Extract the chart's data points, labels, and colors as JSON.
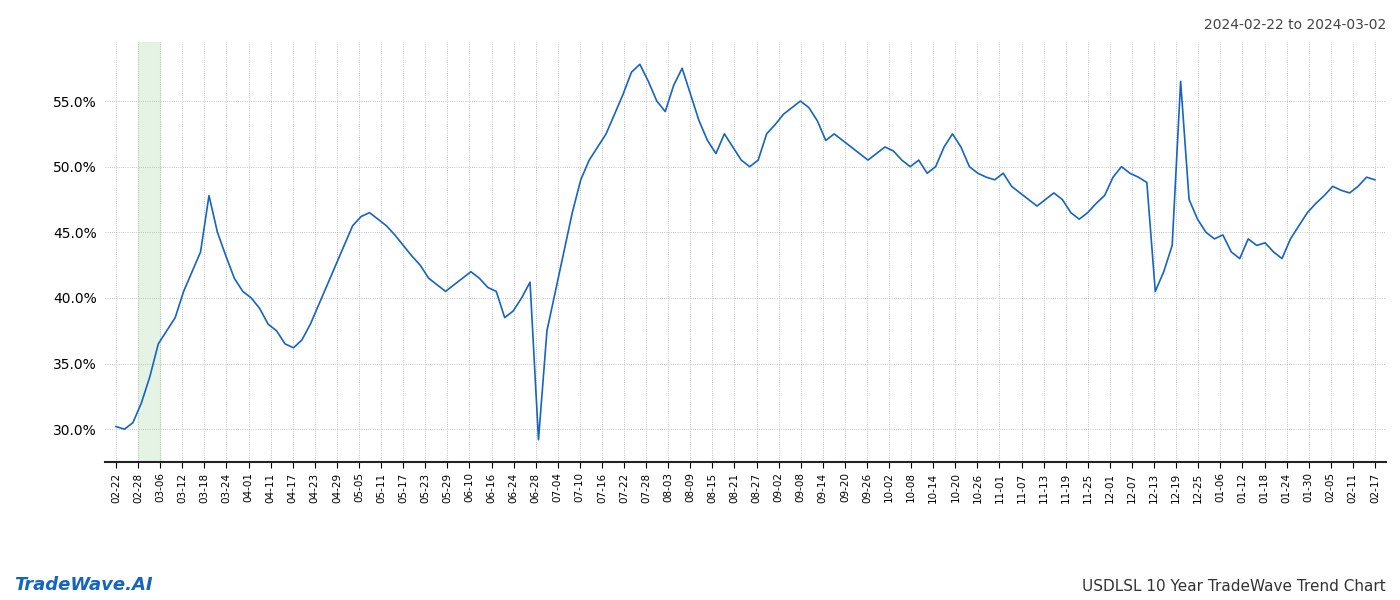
{
  "title_top_right": "2024-02-22 to 2024-03-02",
  "title_bottom_left": "TradeWave.AI",
  "title_bottom_right": "USDLSL 10 Year TradeWave Trend Chart",
  "line_color": "#1565c0",
  "line_width": 1.2,
  "background_color": "#ffffff",
  "grid_color": "#aaaaaa",
  "green_band_color": "#d4ecd4",
  "green_band_alpha": 0.6,
  "ylim": [
    27.5,
    59.5
  ],
  "yticks": [
    30.0,
    35.0,
    40.0,
    45.0,
    50.0,
    55.0
  ],
  "x_labels": [
    "02-22",
    "02-28",
    "03-06",
    "03-12",
    "03-18",
    "03-24",
    "04-01",
    "04-11",
    "04-17",
    "04-23",
    "04-29",
    "05-05",
    "05-11",
    "05-17",
    "05-23",
    "05-29",
    "06-10",
    "06-16",
    "06-24",
    "06-28",
    "07-04",
    "07-10",
    "07-16",
    "07-22",
    "07-28",
    "08-03",
    "08-09",
    "08-15",
    "08-21",
    "08-27",
    "09-02",
    "09-08",
    "09-14",
    "09-20",
    "09-26",
    "10-02",
    "10-08",
    "10-14",
    "10-20",
    "10-26",
    "11-01",
    "11-07",
    "11-13",
    "11-19",
    "11-25",
    "12-01",
    "12-07",
    "12-13",
    "12-19",
    "12-25",
    "01-06",
    "01-12",
    "01-18",
    "01-24",
    "01-30",
    "02-05",
    "02-11",
    "02-17"
  ],
  "green_band_label_start": "02-28",
  "green_band_label_end": "03-06",
  "y_values": [
    30.2,
    30.0,
    30.5,
    32.0,
    34.0,
    36.5,
    37.5,
    38.5,
    40.5,
    42.0,
    43.5,
    47.8,
    45.0,
    43.2,
    41.5,
    40.5,
    40.0,
    39.2,
    38.0,
    37.5,
    36.5,
    36.2,
    36.8,
    38.0,
    39.5,
    41.0,
    42.5,
    44.0,
    45.5,
    46.2,
    46.5,
    46.0,
    45.5,
    44.8,
    44.0,
    43.2,
    42.5,
    41.5,
    41.0,
    40.5,
    41.0,
    41.5,
    42.0,
    41.5,
    40.8,
    40.5,
    38.5,
    39.0,
    40.0,
    41.2,
    29.2,
    37.5,
    40.5,
    43.5,
    46.5,
    49.0,
    50.5,
    51.5,
    52.5,
    54.0,
    55.5,
    57.2,
    57.8,
    56.5,
    55.0,
    54.2,
    56.2,
    57.5,
    55.5,
    53.5,
    52.0,
    51.0,
    52.5,
    51.5,
    50.5,
    50.0,
    50.5,
    52.5,
    53.2,
    54.0,
    54.5,
    55.0,
    54.5,
    53.5,
    52.0,
    52.5,
    52.0,
    51.5,
    51.0,
    50.5,
    51.0,
    51.5,
    51.2,
    50.5,
    50.0,
    50.5,
    49.5,
    50.0,
    51.5,
    52.5,
    51.5,
    50.0,
    49.5,
    49.2,
    49.0,
    49.5,
    48.5,
    48.0,
    47.5,
    47.0,
    47.5,
    48.0,
    47.5,
    46.5,
    46.0,
    46.5,
    47.2,
    47.8,
    49.2,
    50.0,
    49.5,
    49.2,
    48.8,
    40.5,
    42.0,
    44.0,
    56.5,
    47.5,
    46.0,
    45.0,
    44.5,
    44.8,
    43.5,
    43.0,
    44.5,
    44.0,
    44.2,
    43.5,
    43.0,
    44.5,
    45.5,
    46.5,
    47.2,
    47.8,
    48.5,
    48.2,
    48.0,
    48.5,
    49.2,
    49.0
  ]
}
